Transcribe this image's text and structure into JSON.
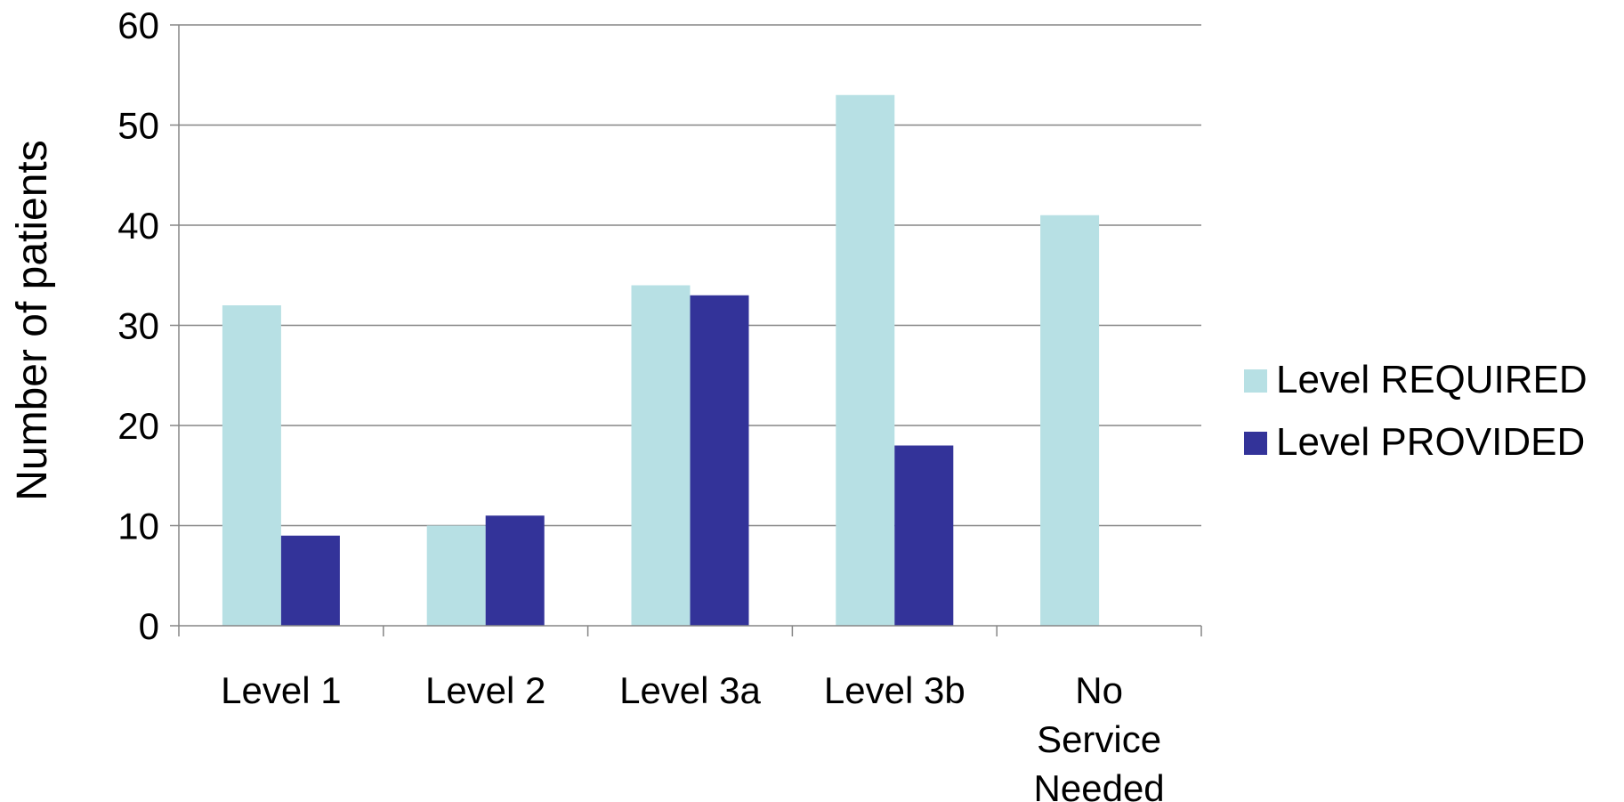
{
  "chart_data": {
    "type": "bar",
    "categories": [
      [
        "Level 1"
      ],
      [
        "Level 2"
      ],
      [
        "Level 3a"
      ],
      [
        "Level 3b"
      ],
      [
        "No",
        "Service",
        "Needed"
      ]
    ],
    "series": [
      {
        "name": "Level REQUIRED",
        "color": "#b7e0e4",
        "values": [
          32,
          10,
          34,
          53,
          41
        ]
      },
      {
        "name": "Level PROVIDED",
        "color": "#333399",
        "values": [
          9,
          11,
          33,
          18,
          0
        ]
      }
    ],
    "title": "",
    "xlabel": "",
    "ylabel": "Number of patients",
    "ylim": [
      0,
      60
    ],
    "yticks": [
      0,
      10,
      20,
      30,
      40,
      50,
      60
    ],
    "grid": true,
    "gridline_color": "#868686",
    "legend_position": "right"
  }
}
